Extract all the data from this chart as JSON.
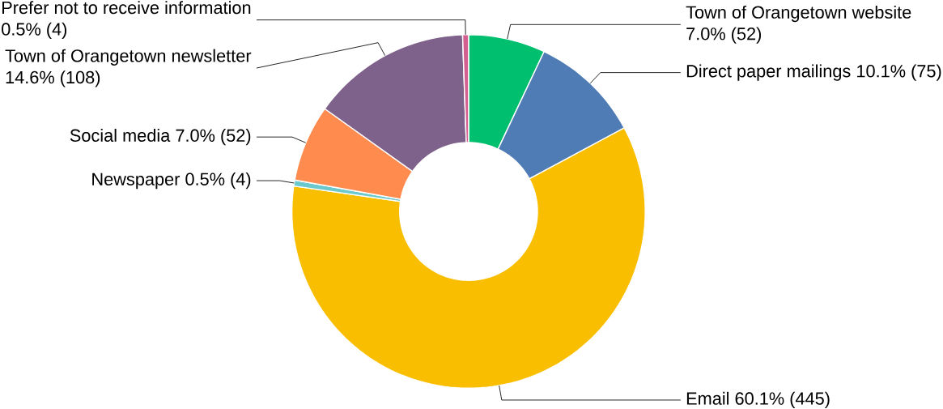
{
  "chart_data": {
    "type": "donut",
    "categories": [
      "Town of Orangetown website",
      "Direct paper mailings",
      "Email",
      "Newspaper",
      "Social media",
      "Town of Orangetown newsletter",
      "Prefer not to receive information"
    ],
    "values": [
      52,
      75,
      445,
      4,
      52,
      108,
      4
    ],
    "value_labels": [
      "7.0% (52)",
      "10.1% (75)",
      "60.1% (445)",
      "0.5% (4)",
      "7.0% (52)",
      "14.6% (108)",
      "0.5% (4)"
    ],
    "colors": [
      "#00bf6f",
      "#507cb6",
      "#f9be00",
      "#6bc8cd",
      "#ff8b4f",
      "#7f628b",
      "#d25f90"
    ]
  }
}
